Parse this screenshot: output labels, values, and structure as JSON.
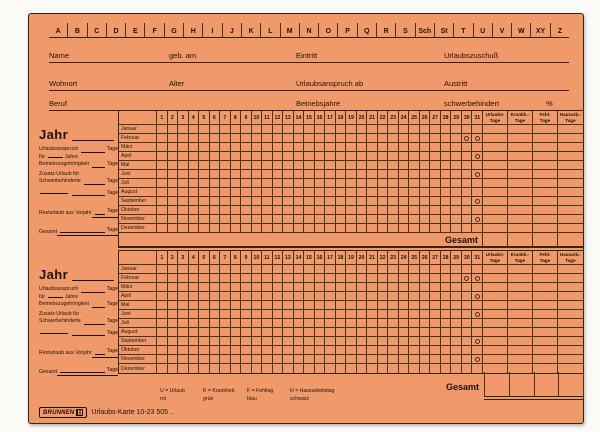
{
  "card": {
    "background": "#F0996B",
    "line_color": "#46321F"
  },
  "tabs": [
    "A",
    "B",
    "C",
    "D",
    "E",
    "F",
    "G",
    "H",
    "I",
    "J",
    "K",
    "L",
    "M",
    "N",
    "O",
    "P",
    "Q",
    "R",
    "S",
    "Sch",
    "St",
    "T",
    "U",
    "V",
    "W",
    "XY",
    "Z"
  ],
  "header": {
    "rows": [
      {
        "fields": [
          "Name",
          "geb. am",
          "Eintritt",
          "Urlaubszuschuß"
        ]
      },
      {
        "fields": [
          "Wohnort",
          "Alter",
          "Urlaubsanspruch ab",
          "Austritt"
        ]
      },
      {
        "fields": [
          "Beruf",
          "Betriebsjahre",
          "schwerbehindert",
          "%"
        ]
      }
    ]
  },
  "section": {
    "year_label": "Jahr",
    "left_rows": [
      {
        "text": "Urlaubsanspruch",
        "tage": "Tage",
        "underline": false
      },
      {
        "text": "für ___ Jahre\nBetriebszugehörigkeit",
        "tage": "Tage",
        "underline": false
      },
      {
        "text": "Zusatz-Urlaub für\nSchwerbehinderte",
        "tage": "Tage",
        "underline": false
      },
      {
        "text": "___",
        "tage": "Tage",
        "underline": false
      },
      {
        "text": "Resturlaub aus Vorjahr",
        "tage": "Tage",
        "underline": true
      },
      {
        "text": "Gesamt",
        "tage": "Tage",
        "underline": true
      }
    ],
    "day_numbers": [
      1,
      2,
      3,
      4,
      5,
      6,
      7,
      8,
      9,
      10,
      11,
      12,
      13,
      14,
      15,
      16,
      17,
      18,
      19,
      20,
      21,
      22,
      23,
      24,
      25,
      26,
      27,
      28,
      29,
      30,
      31
    ],
    "months": [
      {
        "name": "Januar",
        "circles": []
      },
      {
        "name": "Februar",
        "circles": [
          30,
          31
        ]
      },
      {
        "name": "März",
        "circles": []
      },
      {
        "name": "April",
        "circles": [
          31
        ]
      },
      {
        "name": "Mai",
        "circles": []
      },
      {
        "name": "Juni",
        "circles": [
          31
        ]
      },
      {
        "name": "Juli",
        "circles": []
      },
      {
        "name": "August",
        "circles": []
      },
      {
        "name": "September",
        "circles": [
          31
        ]
      },
      {
        "name": "Oktober",
        "circles": []
      },
      {
        "name": "November",
        "circles": [
          31
        ]
      },
      {
        "name": "Dezember",
        "circles": []
      }
    ],
    "summary_cols": [
      "Urlaubs-\nTage",
      "Krankh.-\nTage",
      "Fehl-\nTage",
      "Hausarb.-\nTage"
    ],
    "total_label": "Gesamt"
  },
  "legend": [
    {
      "key": "U = Urlaub",
      "color_name": "rot"
    },
    {
      "key": "K = Krankheit",
      "color_name": "grün"
    },
    {
      "key": "F = Fehltag",
      "color_name": "blau"
    },
    {
      "key": "H = Hausarbeitstag",
      "color_name": "schwarz"
    }
  ],
  "footer": {
    "brand": "BRUNNEN",
    "product": "Urlaubs-Karte 10-23 505 .."
  }
}
